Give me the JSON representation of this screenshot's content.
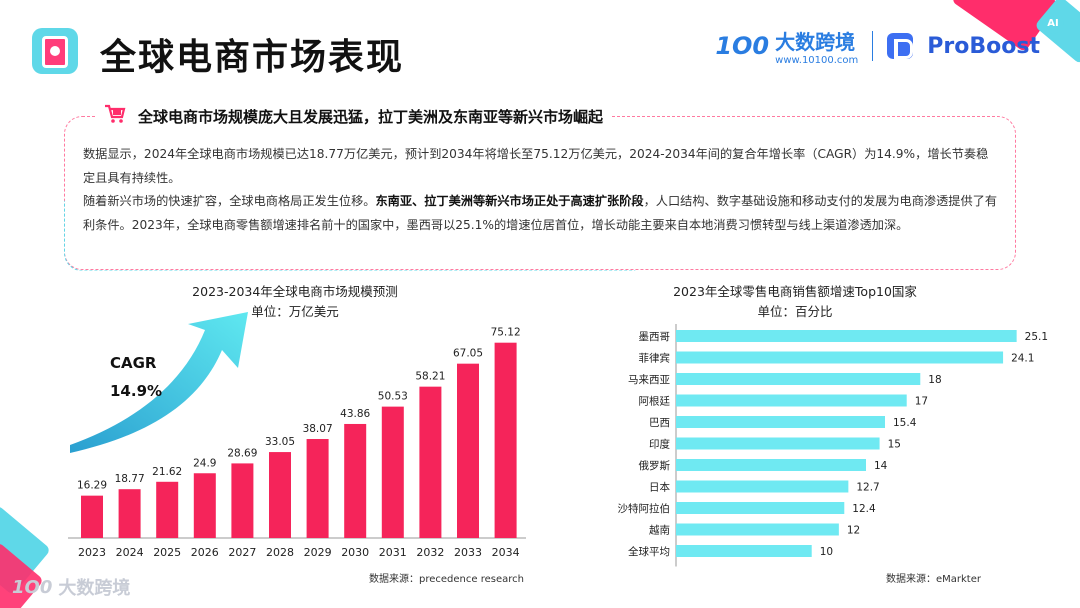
{
  "page": {
    "title": "全球电商市场表现",
    "brand_mark": "1O0",
    "brand_name": "大数跨境",
    "brand_url": "www.10100.com",
    "partner_name": "ProBoost",
    "partner_badge": "AI",
    "footer_mark": "1O0",
    "footer_name": "大数跨境"
  },
  "summary": {
    "heading": "全球电商市场规模庞大且发展迅猛，拉丁美洲及东南亚等新兴市场崛起",
    "p1": "数据显示，2024年全球电商市场规模已达18.77万亿美元，预计到2034年将增长至75.12万亿美元，2024-2034年间的复合年增长率（CAGR）为14.9%，增长节奏稳定且具有持续性。",
    "p2_a": "随着新兴市场的快速扩容，全球电商格局正发生位移。",
    "p2_bold": "东南亚、拉丁美洲等新兴市场正处于高速扩张阶段",
    "p2_b": "，人口结构、数字基础设施和移动支付的发展为电商渗透提供了有利条件。2023年，全球电商零售额增速排名前十的国家中，墨西哥以25.1%的增速位居首位，增长动能主要来自本地消费习惯转型与线上渠道渗透加深。"
  },
  "colors": {
    "bar_left": "#f5245a",
    "bar_right": "#6fe9f2",
    "arrow_start": "#2a9fd0",
    "arrow_end": "#5fe8f0"
  },
  "chart_data": [
    {
      "type": "bar",
      "title": "2023-2034年全球电商市场规模预测",
      "subtitle": "单位：万亿美元",
      "categories": [
        "2023",
        "2024",
        "2025",
        "2026",
        "2027",
        "2028",
        "2029",
        "2030",
        "2031",
        "2032",
        "2033",
        "2034"
      ],
      "values": [
        16.29,
        18.77,
        21.62,
        24.9,
        28.69,
        33.05,
        38.07,
        43.86,
        50.53,
        58.21,
        67.05,
        75.12
      ],
      "ylim": [
        0,
        80
      ],
      "annotation_label": "CAGR",
      "annotation_value": "14.9%",
      "source": "数据来源：precedence research"
    },
    {
      "type": "bar",
      "orientation": "horizontal",
      "title": "2023年全球零售电商销售额增速Top10国家",
      "subtitle": "单位：百分比",
      "categories": [
        "墨西哥",
        "菲律宾",
        "马来西亚",
        "阿根廷",
        "巴西",
        "印度",
        "俄罗斯",
        "日本",
        "沙特阿拉伯",
        "越南",
        "全球平均"
      ],
      "values": [
        25.1,
        24.1,
        18,
        17,
        15.4,
        15,
        14,
        12.7,
        12.4,
        12,
        10
      ],
      "xlim": [
        0,
        28
      ],
      "source": "数据来源：eMarkter"
    }
  ]
}
